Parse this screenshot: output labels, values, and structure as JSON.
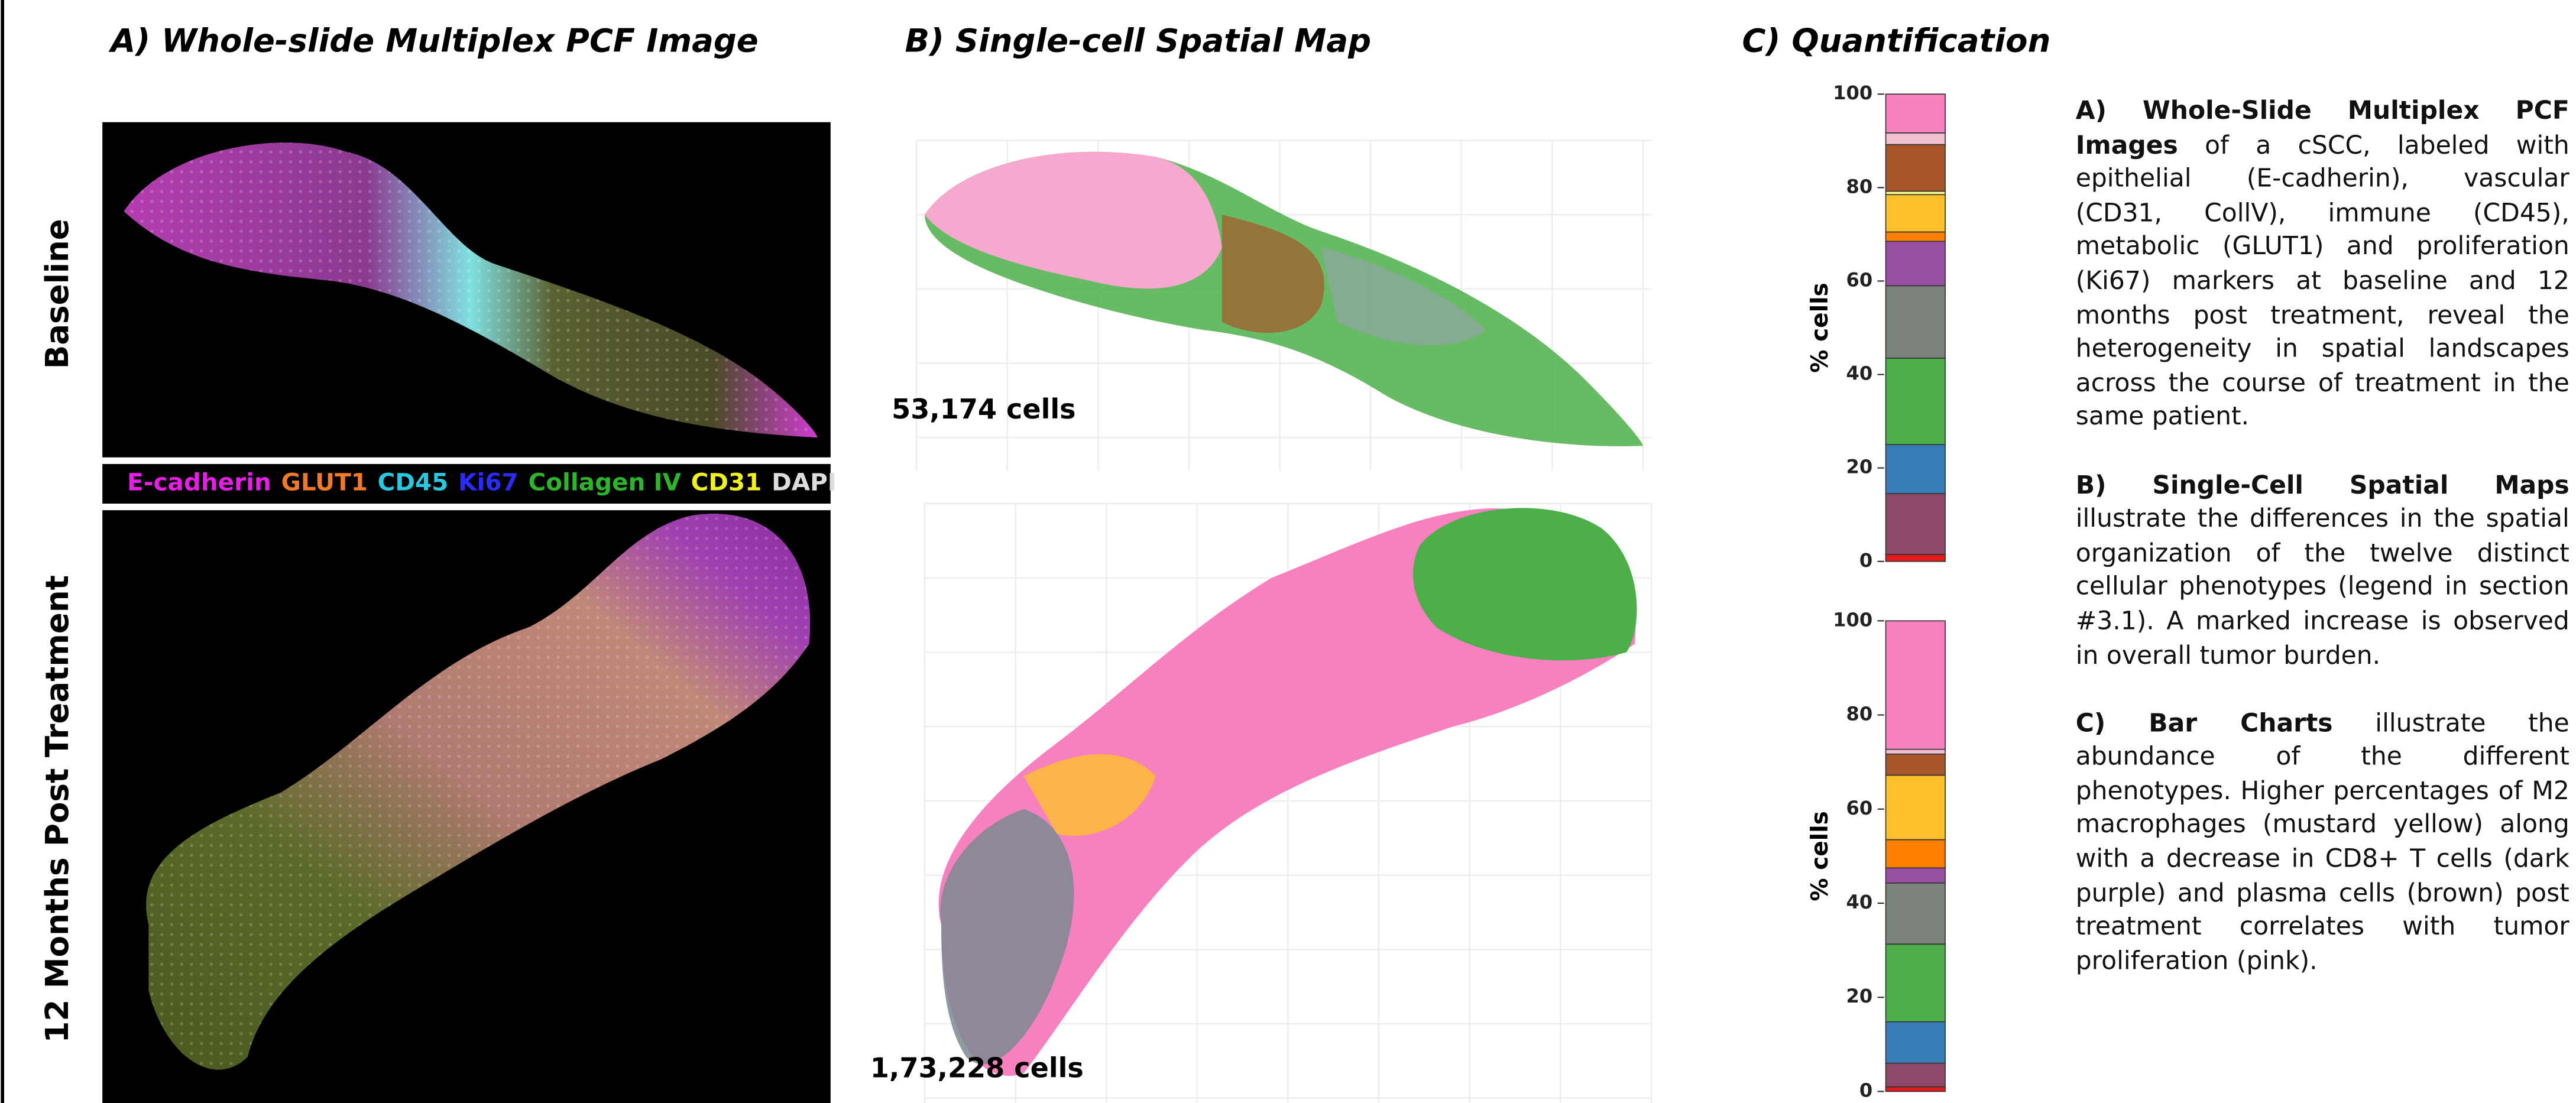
{
  "panel_titles": [
    "A) Whole-slide Multiplex PCF Image",
    "B) Single-cell Spatial Map",
    "C) Quantification"
  ],
  "row_labels": [
    "Baseline",
    "12 Months Post Treatment"
  ],
  "markers": [
    {
      "name": "E-cadherin",
      "color": "#e81ee8"
    },
    {
      "name": "GLUT1",
      "color": "#f07a2a"
    },
    {
      "name": "CD45",
      "color": "#27c8e0"
    },
    {
      "name": "Ki67",
      "color": "#2a2cff"
    },
    {
      "name": "Collagen IV",
      "color": "#2cb52c"
    },
    {
      "name": "CD31",
      "color": "#f0f020"
    },
    {
      "name": "DAPI",
      "color": "#dddddd"
    }
  ],
  "cell_counts": [
    "53,174 cells",
    "1,73,228 cells"
  ],
  "chart_data": [
    {
      "type": "bar",
      "stacked": true,
      "ylabel": "% cells",
      "values": [
        1.5,
        13,
        10.5,
        18.5,
        15.5,
        9.5,
        2,
        8,
        0.7,
        10,
        2.5,
        8.3
      ],
      "colors": [
        "#e41a1c",
        "#8e4a68",
        "#377eb8",
        "#4daf4a",
        "#7b817b",
        "#984ea3",
        "#ff7f00",
        "#fdc02a",
        "#ffff99",
        "#a65628",
        "#f0c0d0",
        "#f781bf"
      ],
      "ylim": [
        0,
        100
      ],
      "yticks": [
        0,
        20,
        40,
        60,
        80,
        100
      ]
    },
    {
      "type": "bar",
      "stacked": true,
      "ylabel": "% cells",
      "values": [
        1,
        5,
        8.8,
        16.5,
        13,
        3.2,
        6,
        13.7,
        4.5,
        1,
        27.3
      ],
      "colors": [
        "#e41a1c",
        "#8e4a68",
        "#377eb8",
        "#4daf4a",
        "#7b817b",
        "#984ea3",
        "#ff7f00",
        "#fdc02a",
        "#a65628",
        "#f0c0d0",
        "#f781bf"
      ],
      "ylim": [
        0,
        100
      ],
      "yticks": [
        0,
        20,
        40,
        60,
        80,
        100
      ]
    }
  ],
  "description": [
    {
      "heading": "A) Whole-Slide Multiplex PCF Images",
      "text": "of a cSCC, labeled with epithelial (E-cadherin), vascular (CD31, CollV), immune (CD45), metabolic (GLUT1) and proliferation (Ki67) markers at baseline and 12 months post treatment, reveal the heterogeneity in spatial landscapes across the course of treatment in the same patient."
    },
    {
      "heading": "B) Single-Cell Spatial Maps",
      "text": "illustrate the differences in the spatial organization of the twelve distinct cellular phenotypes (legend in section #3.1). A marked increase is observed in overall tumor burden."
    },
    {
      "heading": "C) Bar Charts",
      "text": "illustrate the abundance of the different phenotypes. Higher percentages of M2 macrophages (mustard yellow) along with a decrease in CD8+ T cells (dark purple) and plasma cells (brown) post treatment correlates with tumor proliferation (pink)."
    }
  ]
}
